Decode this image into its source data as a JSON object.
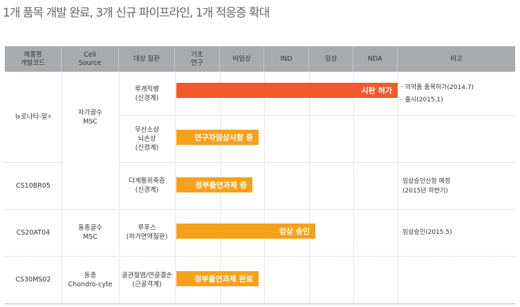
{
  "title": "1개 품목 개발 완료, 3개 신규 파이프라인, 1개 적응증 확대",
  "headers": [
    "제품명\n개발코드",
    "Cell\nSource",
    "대상 질환",
    "기초\n연구",
    "비임상",
    "IND",
    "임상",
    "NDA",
    "비고"
  ],
  "colors": {
    "header": "#a9abae",
    "approved": "#f15a29",
    "progress": "#f7a11a"
  },
  "products": [
    "뉴로나타-알",
    "CS10BR05",
    "CS20AT04",
    "CS30MS02"
  ],
  "trademark": "®",
  "sources": [
    "자가골수\nMSC",
    "동종골수\nMSC",
    "동종\nChondro-cyte"
  ],
  "rows": [
    {
      "disease": "루게릭병\n(신경계)",
      "bar_label": "시판 허가",
      "stage": "NDA",
      "notes": "· 의약품 품목허가(2014.7)\n· 출시(2015.1)"
    },
    {
      "disease": "무산소성\n뇌손상\n(신경계)",
      "bar_label": "연구자임상시험 중",
      "stage": "비임상 (partial)",
      "notes": ""
    },
    {
      "disease": "다계통위축증\n(신경계)",
      "bar_label": "정부출연과제 중",
      "stage": "비임상 (partial)",
      "notes": "임상승인신청 예정\n(2015년 하반기)"
    },
    {
      "disease": "루푸스\n(자가면역질환)",
      "bar_label": "임상 승인",
      "stage": "임상 (partial)",
      "notes": "임상승인(2015.5)"
    },
    {
      "disease": "골관절염/연골결손\n(근골격계)",
      "bar_label": "정부출연과제 완료",
      "stage": "비임상 (partial)",
      "notes": ""
    }
  ]
}
